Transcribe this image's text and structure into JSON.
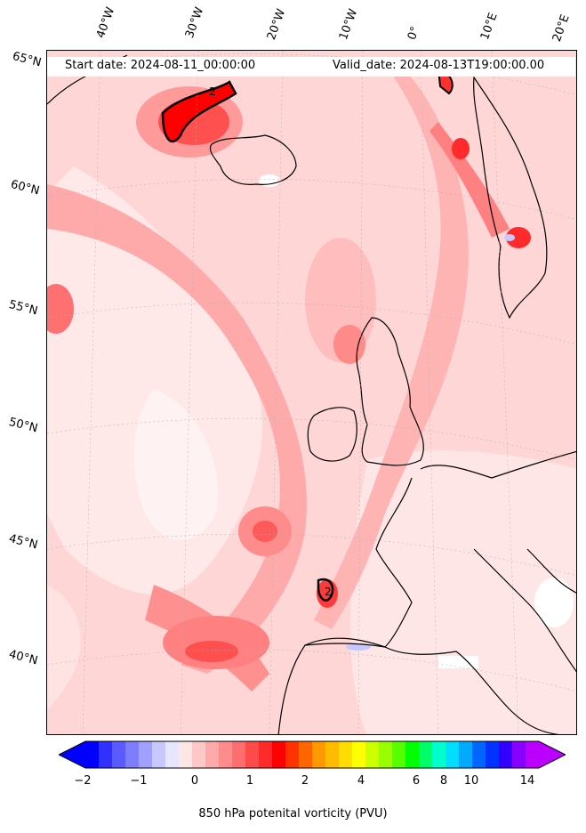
{
  "header": {
    "start_date": "Start date: 2024-08-11_00:00:00",
    "valid_date": "Valid_date: 2024-08-13T19:00:00.00"
  },
  "longitude_labels": [
    "40°W",
    "30°W",
    "20°W",
    "10°W",
    "0°",
    "10°E",
    "20°E"
  ],
  "latitude_labels": [
    "65°N",
    "60°N",
    "55°N",
    "50°N",
    "45°N",
    "40°N"
  ],
  "contour_labels": [
    "2",
    "2"
  ],
  "colorbar": {
    "label": "850 hPa potenital vorticity (PVU)",
    "ticks": [
      "−2",
      "−1",
      "0",
      "1",
      "2",
      "4",
      "6",
      "8",
      "10",
      "14"
    ],
    "colors": [
      "#0000ff",
      "#3030ff",
      "#5a5aff",
      "#7d7dff",
      "#a0a0ff",
      "#c8c8ff",
      "#e6e6ff",
      "#ffe6e6",
      "#ffc8c8",
      "#ffaaaa",
      "#ff8c8c",
      "#ff6e6e",
      "#ff4a4a",
      "#ff2a2a",
      "#ff0000",
      "#ff3300",
      "#ff6600",
      "#ff9900",
      "#ffbb00",
      "#ffdd00",
      "#ffff00",
      "#ccff00",
      "#99ff00",
      "#55ff00",
      "#00ff00",
      "#00ff66",
      "#00ffcc",
      "#00ddff",
      "#00aaff",
      "#0066ff",
      "#0033ff",
      "#3300ff",
      "#8800ff",
      "#bb00ff"
    ],
    "extend": "both"
  }
}
